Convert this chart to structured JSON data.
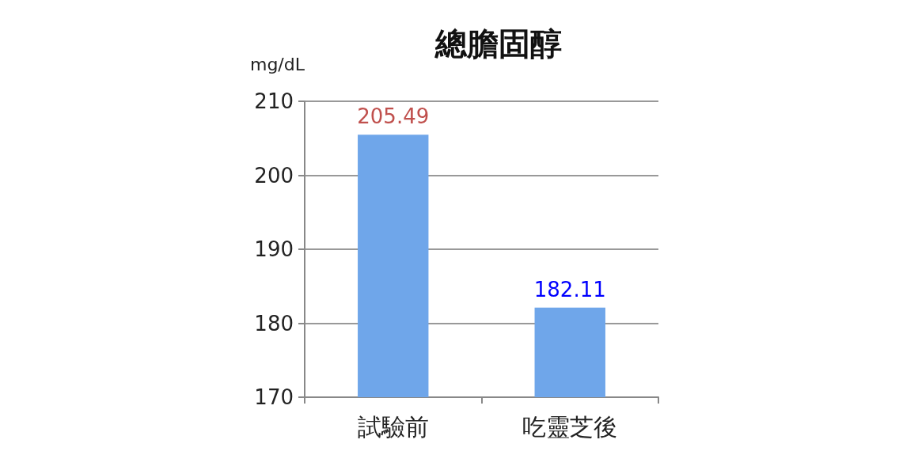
{
  "chart_data": {
    "type": "bar",
    "title": "總膽固醇",
    "ylabel": "mg/dL",
    "categories": [
      "試驗前",
      "吃靈芝後"
    ],
    "values": [
      205.49,
      182.11
    ],
    "color": "#6fa6ea",
    "ylim": [
      170,
      210
    ],
    "yticks": [
      170,
      180,
      190,
      200,
      210
    ],
    "grid": "y",
    "data_labels": true
  }
}
